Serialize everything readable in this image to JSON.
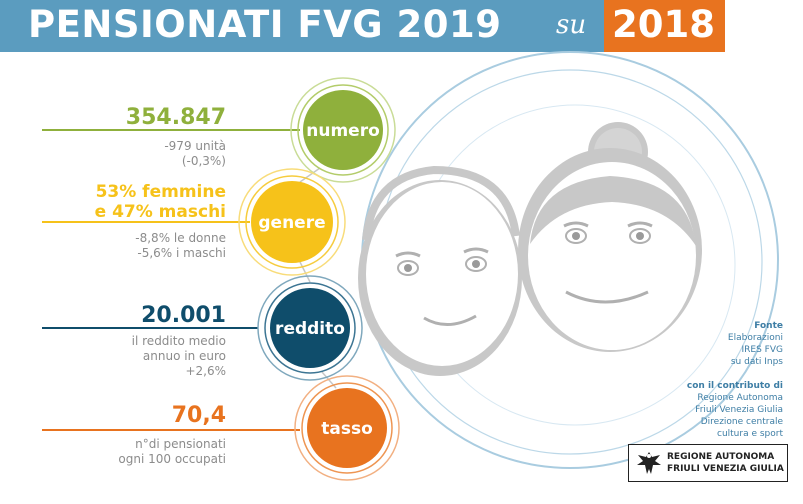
{
  "header": {
    "title": "PENSIONATI FVG 2019",
    "connector": "su",
    "compare_year": "2018"
  },
  "indicators": [
    {
      "key": "numero",
      "label": "numero",
      "value": "354.847",
      "detail": [
        "-979 unità",
        "(-0,3%)"
      ],
      "color": "#8fb03c"
    },
    {
      "key": "genere",
      "label": "genere",
      "value_lines": [
        "53% femmine",
        "e 47% maschi"
      ],
      "detail": [
        "-8,8% le donne",
        "-5,6% i maschi"
      ],
      "color": "#f6c21a"
    },
    {
      "key": "reddito",
      "label": "reddito",
      "value": "20.001",
      "detail": [
        "il reddito medio",
        "annuo in euro",
        "+2,6%"
      ],
      "color": "#0f4d6b"
    },
    {
      "key": "tasso",
      "label": "tasso",
      "value": "70,4",
      "detail": [
        "n°di pensionati",
        "ogni 100 occupati"
      ],
      "color": "#e8731f"
    }
  ],
  "source": {
    "heading": "Fonte",
    "lines": [
      "Elaborazioni",
      "IRES FVG",
      "su dati Inps"
    ],
    "contrib_heading": "con il contributo di",
    "contrib_lines": [
      "Regione Autonoma",
      "Friuli Venezia Giulia",
      "Direzione centrale",
      "cultura e sport"
    ]
  },
  "logo": {
    "lines": [
      "REGIONE AUTONOMA",
      "FRIULI VENEZIA GIULIA"
    ],
    "icon": "eagle-icon"
  },
  "colors": {
    "banner": "#5b9cbf",
    "accent": "#e8731f",
    "face": "#c8c8c8",
    "ring": "#a9cce0"
  }
}
